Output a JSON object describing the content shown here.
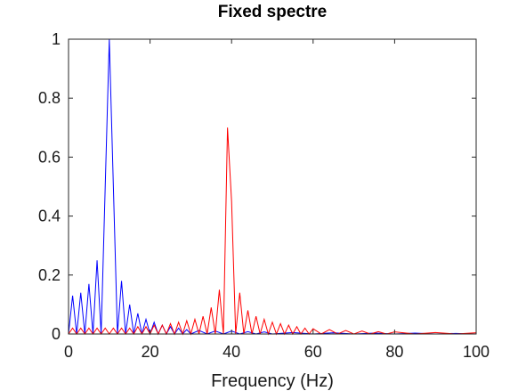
{
  "chart_data": {
    "type": "line",
    "title": "Fixed spectre",
    "xlabel": "Frequency (Hz)",
    "ylabel": "",
    "xlim": [
      0,
      100
    ],
    "ylim": [
      0,
      1
    ],
    "xticks": [
      "0",
      "20",
      "40",
      "60",
      "80",
      "100"
    ],
    "yticks": [
      "0",
      "0.2",
      "0.4",
      "0.6",
      "0.8",
      "1"
    ],
    "grid": false,
    "legend": "none",
    "series": [
      {
        "color": "#0000ff",
        "x": [
          0,
          1,
          2,
          3,
          4,
          5,
          6,
          7,
          8,
          9,
          10,
          11,
          12,
          13,
          14,
          15,
          16,
          17,
          18,
          19,
          20,
          21,
          22,
          23,
          24,
          25,
          26,
          27,
          28,
          29,
          30,
          32,
          34,
          36,
          38,
          40,
          42,
          44,
          46,
          48,
          50,
          55,
          60,
          65,
          70,
          75,
          80,
          85,
          90,
          95,
          100
        ],
        "y": [
          0.0,
          0.13,
          0.0,
          0.14,
          0.0,
          0.17,
          0.0,
          0.25,
          0.0,
          0.5,
          1.0,
          0.5,
          0.0,
          0.18,
          0.0,
          0.1,
          0.0,
          0.07,
          0.0,
          0.05,
          0.0,
          0.04,
          0.0,
          0.03,
          0.0,
          0.025,
          0.0,
          0.02,
          0.0,
          0.015,
          0.0,
          0.012,
          0.0,
          0.01,
          0.0,
          0.01,
          0.0,
          0.008,
          0.0,
          0.007,
          0.0,
          0.005,
          0.0,
          0.004,
          0.0,
          0.003,
          0.0,
          0.003,
          0.0,
          0.002,
          0.0
        ]
      },
      {
        "color": "#ff0000",
        "x": [
          0,
          1,
          2,
          3,
          4,
          5,
          6,
          7,
          8,
          9,
          10,
          11,
          12,
          13,
          14,
          15,
          16,
          17,
          18,
          19,
          20,
          21,
          22,
          23,
          24,
          25,
          26,
          27,
          28,
          29,
          30,
          31,
          32,
          33,
          34,
          35,
          36,
          37,
          38,
          39,
          40,
          41,
          42,
          43,
          44,
          45,
          46,
          47,
          48,
          49,
          50,
          51,
          52,
          53,
          54,
          55,
          56,
          57,
          58,
          59,
          60,
          62,
          64,
          66,
          68,
          70,
          72,
          74,
          76,
          78,
          80,
          85,
          90,
          95,
          100
        ],
        "y": [
          0.0,
          0.02,
          0.0,
          0.02,
          0.0,
          0.02,
          0.0,
          0.02,
          0.0,
          0.02,
          0.0,
          0.02,
          0.0,
          0.02,
          0.0,
          0.02,
          0.0,
          0.025,
          0.0,
          0.025,
          0.0,
          0.03,
          0.0,
          0.03,
          0.0,
          0.035,
          0.0,
          0.04,
          0.0,
          0.045,
          0.0,
          0.05,
          0.0,
          0.06,
          0.0,
          0.09,
          0.0,
          0.15,
          0.0,
          0.7,
          0.45,
          0.0,
          0.14,
          0.0,
          0.08,
          0.0,
          0.06,
          0.0,
          0.05,
          0.0,
          0.04,
          0.0,
          0.035,
          0.0,
          0.03,
          0.0,
          0.025,
          0.0,
          0.02,
          0.0,
          0.018,
          0.0,
          0.015,
          0.0,
          0.012,
          0.0,
          0.01,
          0.0,
          0.008,
          0.0,
          0.007,
          0.0,
          0.005,
          0.0,
          0.004
        ]
      }
    ]
  }
}
